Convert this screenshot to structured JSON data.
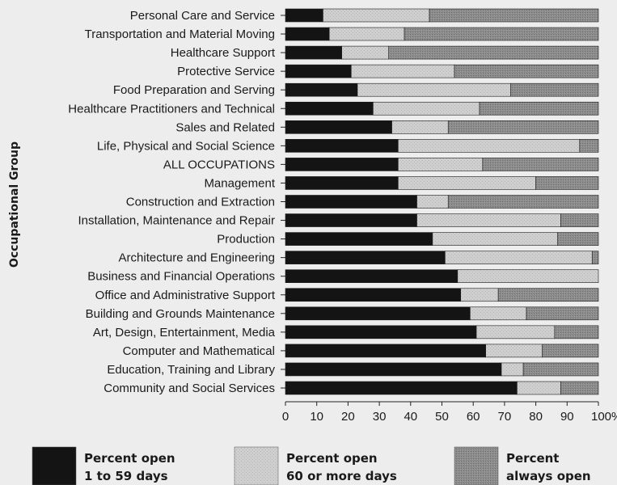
{
  "chart_data": {
    "type": "bar",
    "stacked": true,
    "orientation": "horizontal",
    "ylabel": "Occupational Group",
    "xlabel": "",
    "xlim": [
      0,
      100
    ],
    "x_ticks": [
      "0",
      "10",
      "20",
      "30",
      "40",
      "50",
      "60",
      "70",
      "80",
      "90",
      "100%"
    ],
    "legend_position": "bottom",
    "categories": [
      "Personal Care and Service",
      "Transportation and Material Moving",
      "Healthcare Support",
      "Protective Service",
      "Food Preparation and Serving",
      "Healthcare Practitioners and Technical",
      "Sales and Related",
      "Life, Physical and Social Science",
      "ALL OCCUPATIONS",
      "Management",
      "Construction and Extraction",
      "Installation, Maintenance and Repair",
      "Production",
      "Architecture and Engineering",
      "Business and Financial Operations",
      "Office and Administrative Support",
      "Building and Grounds Maintenance",
      "Art, Design, Entertainment, Media",
      "Computer and Mathematical",
      "Education, Training and Library",
      "Community and Social Services"
    ],
    "series": [
      {
        "name": "Percent open 1 to 59 days",
        "legend_lines": [
          "Percent open",
          "1 to 59 days"
        ],
        "color": "#141414",
        "values": [
          12,
          14,
          18,
          21,
          23,
          28,
          34,
          36,
          36,
          36,
          42,
          42,
          47,
          51,
          55,
          56,
          59,
          61,
          64,
          69,
          74
        ]
      },
      {
        "name": "Percent open 60 or more days",
        "legend_lines": [
          "Percent open",
          "60 or more days"
        ],
        "color": "#c9c9c9",
        "values": [
          34,
          24,
          15,
          33,
          49,
          34,
          18,
          58,
          27,
          44,
          10,
          46,
          40,
          47,
          45,
          12,
          18,
          25,
          18,
          7,
          14
        ]
      },
      {
        "name": "Percent always open",
        "legend_lines": [
          "Percent",
          "always open"
        ],
        "color": "#848484",
        "values": [
          54,
          62,
          67,
          46,
          28,
          38,
          48,
          6,
          37,
          20,
          48,
          12,
          13,
          2,
          0,
          32,
          23,
          14,
          18,
          24,
          12
        ]
      }
    ]
  }
}
